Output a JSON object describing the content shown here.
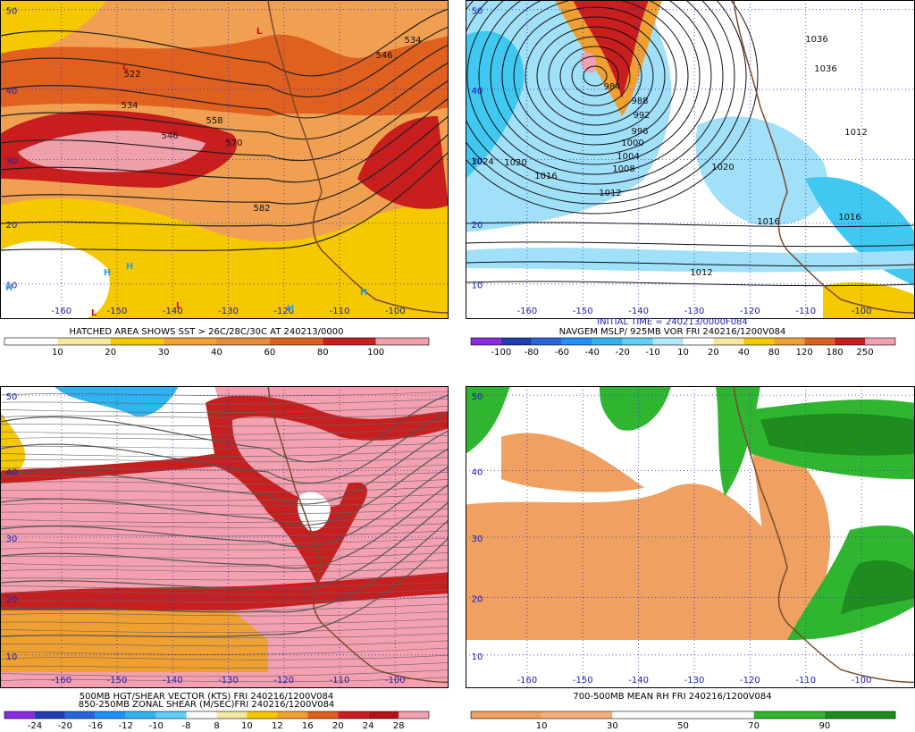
{
  "panels": [
    {
      "lat_labels": [
        50,
        40,
        30,
        20,
        10
      ],
      "lon_labels": [
        -160,
        -150,
        -140,
        -130,
        -120,
        -110,
        -100
      ],
      "contour_labels": [
        "522",
        "534",
        "546",
        "558",
        "570",
        "582",
        "534",
        "546"
      ],
      "markers": [
        "L",
        "L",
        "H",
        "H",
        "H",
        "L",
        "L",
        "H",
        "H"
      ],
      "captions": [
        "HATCHED AREA SHOWS SST > 26C/28C/30C AT 240213/0000"
      ],
      "colorbar": {
        "colors": [
          "#ffffff",
          "#f5e6a0",
          "#f5c800",
          "#f5a030",
          "#e88a3c",
          "#e06020",
          "#c81e1e",
          "#f0a0a8"
        ],
        "labels": [
          10,
          20,
          30,
          40,
          60,
          80,
          100
        ]
      }
    },
    {
      "lat_labels": [
        50,
        40,
        30,
        20,
        10
      ],
      "lon_labels": [
        -160,
        -150,
        -140,
        -130,
        -120,
        -110,
        -100
      ],
      "contour_labels": [
        "984",
        "988",
        "992",
        "996",
        "1000",
        "1004",
        "1008",
        "1012",
        "1016",
        "1024",
        "1020",
        "1020",
        "1016",
        "1012",
        "1036",
        "1036",
        "1012",
        "1016"
      ],
      "markers": [],
      "captions": [
        "INITIAL TIME = 240213/0000F084",
        "NAVGEM MSLP/ 925MB VOR FRI 240216/1200V084"
      ],
      "colorbar": {
        "colors": [
          "#8a2be2",
          "#1e3cb4",
          "#2864dc",
          "#1e90ff",
          "#30b4f0",
          "#60d0f8",
          "#b0e8fa",
          "#ffffff",
          "#f5e6a0",
          "#f5c800",
          "#f0a030",
          "#e06020",
          "#c81e1e",
          "#f0a0b0"
        ],
        "labels": [
          -100,
          -80,
          -60,
          -40,
          -20,
          -10,
          10,
          20,
          40,
          80,
          120,
          180,
          250
        ]
      }
    },
    {
      "lat_labels": [
        50,
        40,
        30,
        20,
        10
      ],
      "lon_labels": [
        -160,
        -150,
        -140,
        -130,
        -120,
        -110,
        -100
      ],
      "contour_labels": [],
      "markers": [],
      "captions": [
        "500MB HGT/SHEAR VECTOR (KTS) FRI 240216/1200V084",
        "850-250MB ZONAL SHEAR (M/SEC)FRI 240216/1200V084"
      ],
      "colorbar": {
        "colors": [
          "#8a2be2",
          "#1e3cb4",
          "#2864dc",
          "#1e90ff",
          "#30b4f0",
          "#60d0f8",
          "#ffffff",
          "#f5e6a0",
          "#f5c800",
          "#f0a030",
          "#e06020",
          "#c81e1e",
          "#b41414",
          "#f0a0b0"
        ],
        "labels": [
          -24,
          -20,
          -16,
          -12,
          -10,
          -8,
          8,
          10,
          12,
          16,
          20,
          24,
          28
        ]
      }
    },
    {
      "lat_labels": [
        50,
        40,
        30,
        20,
        10
      ],
      "lon_labels": [
        -160,
        -150,
        -140,
        -130,
        -120,
        -110,
        -100
      ],
      "contour_labels": [],
      "markers": [],
      "captions": [
        "700-500MB MEAN RH FRI 240216/1200V084"
      ],
      "colorbar": {
        "colors": [
          "#f0a060",
          "#f4b07a",
          "#ffffff",
          "#ffffff",
          "#2fb52f",
          "#1e8c1e"
        ],
        "labels": [
          10,
          30,
          50,
          70,
          90
        ]
      }
    }
  ]
}
